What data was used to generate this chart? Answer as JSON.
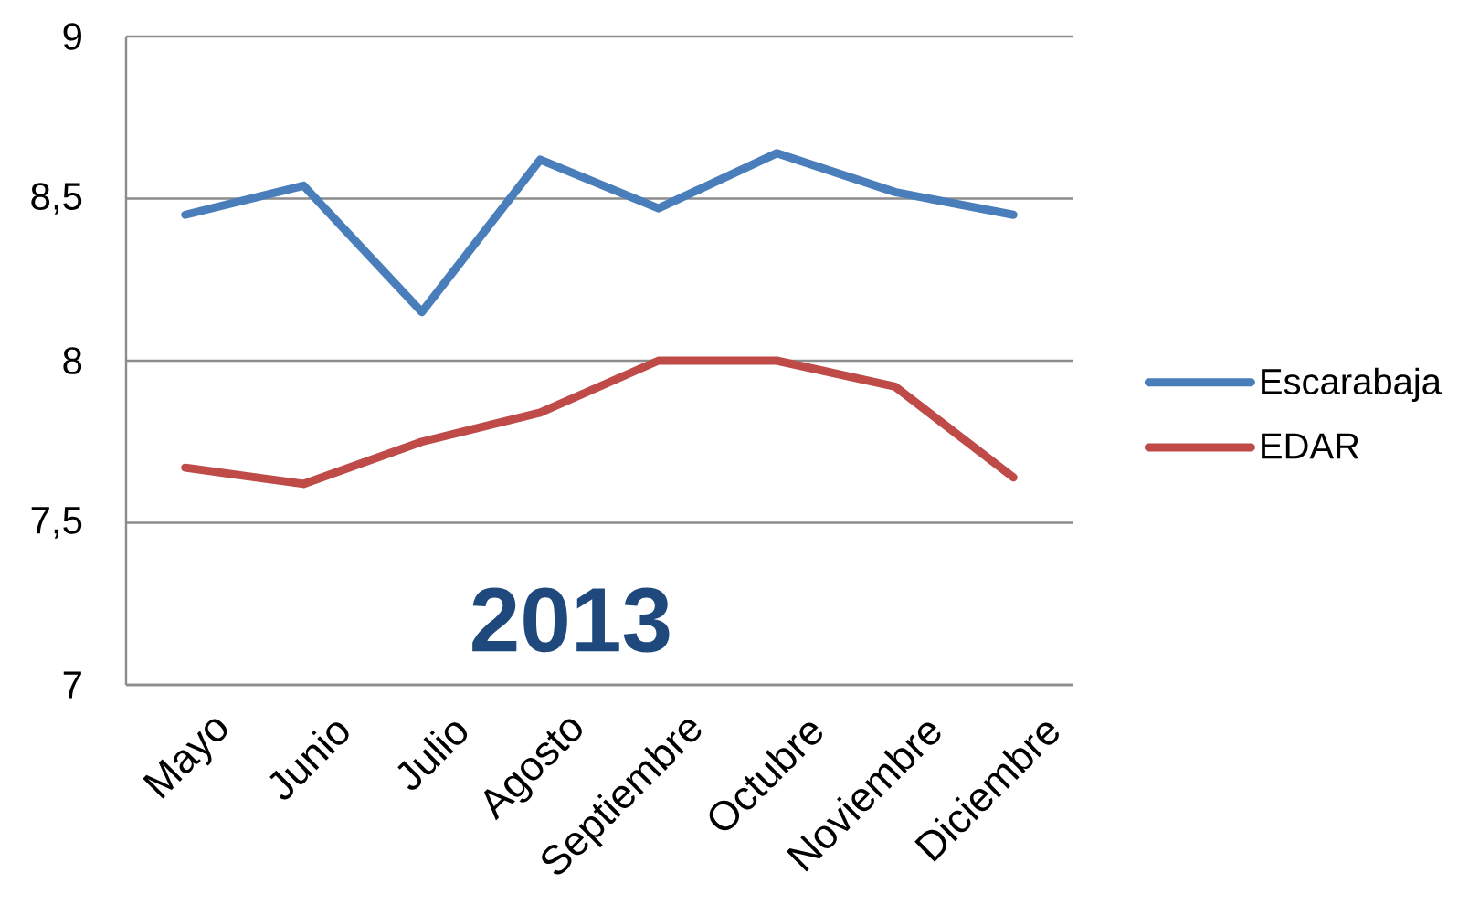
{
  "chart_data": {
    "type": "line",
    "annotations": [
      "2013"
    ],
    "categories": [
      "Mayo",
      "Junio",
      "Julio",
      "Agosto",
      "Septiembre",
      "Octubre",
      "Noviembre",
      "Diciembre"
    ],
    "series": [
      {
        "name": "Escarabaja",
        "color": "#4a7ebb",
        "values": [
          8.45,
          8.54,
          8.15,
          8.62,
          8.47,
          8.64,
          8.52,
          8.45
        ]
      },
      {
        "name": "EDAR",
        "color": "#be4b48",
        "values": [
          7.67,
          7.62,
          7.75,
          7.84,
          8.0,
          8.0,
          7.92,
          7.64
        ]
      }
    ],
    "ylim": [
      7,
      9
    ],
    "yticks": [
      7,
      {
        "value": 7.5,
        "label": "7,5"
      },
      8,
      {
        "value": 8.5,
        "label": "8,5"
      },
      9
    ],
    "grid": "y",
    "legend": "right",
    "marker": "none",
    "line_style": "solid"
  }
}
